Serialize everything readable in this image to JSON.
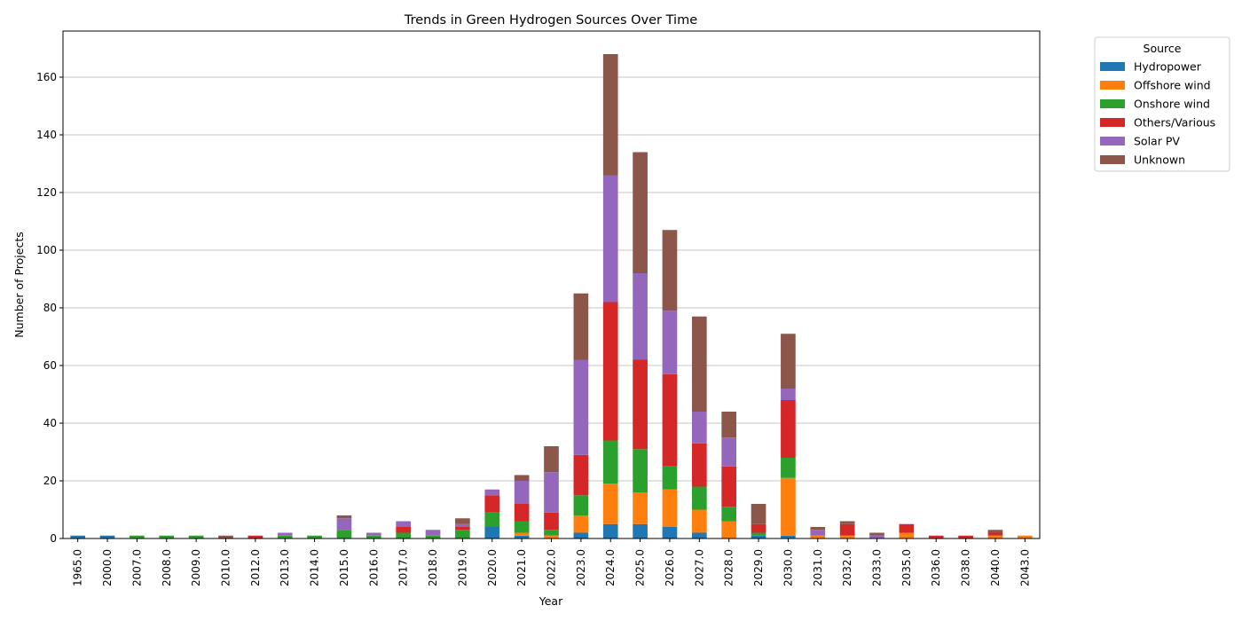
{
  "chart_data": {
    "type": "bar",
    "stacked": true,
    "title": "Trends in Green Hydrogen Sources Over Time",
    "xlabel": "Year",
    "ylabel": "Number of Projects",
    "ylim": [
      0,
      176
    ],
    "yticks": [
      0,
      20,
      40,
      60,
      80,
      100,
      120,
      140,
      160
    ],
    "grid": "horizontal",
    "legend": {
      "title": "Source",
      "placement": "outside-top-right"
    },
    "categories": [
      "1965.0",
      "2000.0",
      "2007.0",
      "2008.0",
      "2009.0",
      "2010.0",
      "2012.0",
      "2013.0",
      "2014.0",
      "2015.0",
      "2016.0",
      "2017.0",
      "2018.0",
      "2019.0",
      "2020.0",
      "2021.0",
      "2022.0",
      "2023.0",
      "2024.0",
      "2025.0",
      "2026.0",
      "2027.0",
      "2028.0",
      "2029.0",
      "2030.0",
      "2031.0",
      "2032.0",
      "2033.0",
      "2035.0",
      "2036.0",
      "2038.0",
      "2040.0",
      "2043.0"
    ],
    "series": [
      {
        "name": "Hydropower",
        "color": "#1f77b4",
        "values": [
          1,
          1,
          0,
          0,
          0,
          0,
          0,
          0,
          0,
          0,
          0,
          0,
          0,
          0,
          4,
          1,
          0,
          2,
          5,
          5,
          4,
          2,
          0,
          1,
          1,
          0,
          0,
          0,
          0,
          0,
          0,
          0,
          0
        ]
      },
      {
        "name": "Offshore wind",
        "color": "#ff7f0e",
        "values": [
          0,
          0,
          0,
          0,
          0,
          0,
          0,
          0,
          0,
          0,
          0,
          0,
          0,
          0,
          0,
          1,
          1,
          6,
          14,
          11,
          13,
          8,
          6,
          0,
          20,
          1,
          1,
          0,
          2,
          0,
          0,
          1,
          1
        ]
      },
      {
        "name": "Onshore wind",
        "color": "#2ca02c",
        "values": [
          0,
          0,
          1,
          1,
          1,
          0,
          0,
          1,
          1,
          3,
          1,
          2,
          1,
          3,
          5,
          4,
          2,
          7,
          15,
          15,
          8,
          8,
          5,
          1,
          7,
          0,
          0,
          0,
          0,
          0,
          0,
          0,
          0
        ]
      },
      {
        "name": "Others/Various",
        "color": "#d62728",
        "values": [
          0,
          0,
          0,
          0,
          0,
          0,
          1,
          0,
          0,
          0,
          0,
          2,
          0,
          1,
          6,
          6,
          6,
          14,
          48,
          31,
          32,
          15,
          14,
          3,
          20,
          0,
          4,
          0,
          3,
          1,
          1,
          1,
          0
        ]
      },
      {
        "name": "Solar PV",
        "color": "#9467bd",
        "values": [
          0,
          0,
          0,
          0,
          0,
          0,
          0,
          1,
          0,
          4,
          1,
          2,
          2,
          1,
          2,
          8,
          14,
          33,
          44,
          30,
          22,
          11,
          10,
          0,
          4,
          2,
          0,
          1,
          0,
          0,
          0,
          0,
          0
        ]
      },
      {
        "name": "Unknown",
        "color": "#8c564b",
        "values": [
          0,
          0,
          0,
          0,
          0,
          1,
          0,
          0,
          0,
          1,
          0,
          0,
          0,
          2,
          0,
          2,
          9,
          23,
          42,
          42,
          28,
          33,
          9,
          7,
          19,
          1,
          1,
          1,
          0,
          0,
          0,
          1,
          0
        ]
      }
    ]
  }
}
